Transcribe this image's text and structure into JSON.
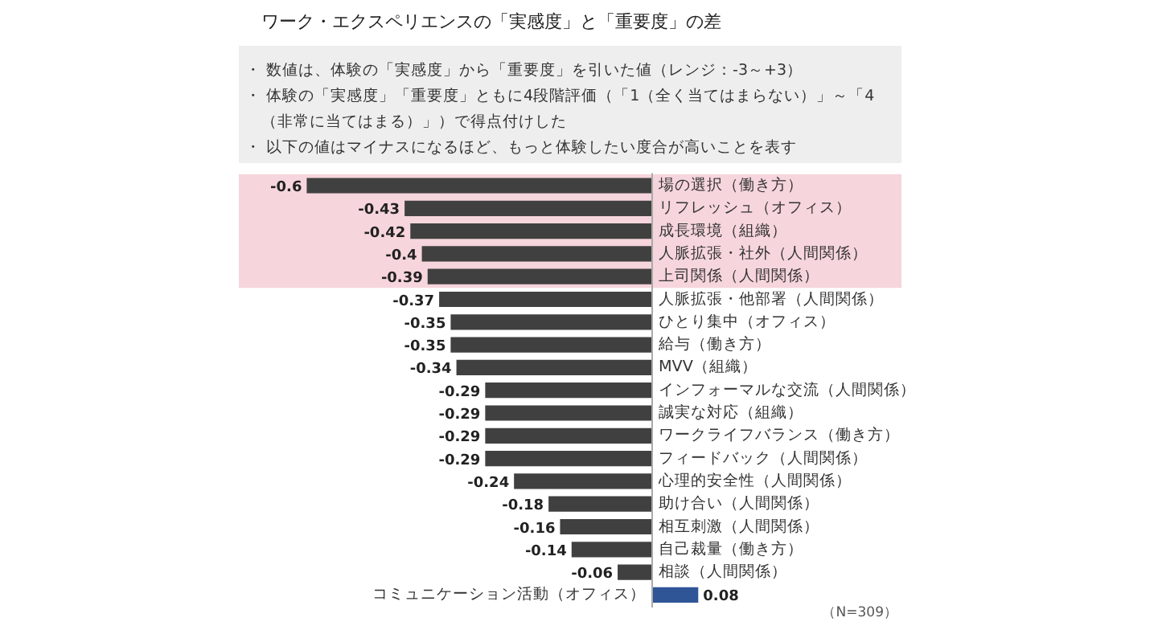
{
  "chart_data": {
    "type": "bar",
    "orientation": "horizontal",
    "data_labels": true,
    "grid": false,
    "title": "ワーク・エクスペリエンスの「実感度」と「重要度」の差",
    "annotations": [
      "・ 数値は、体験の「実感度」から「重要度」を引いた値（レンジ：-3～+3）",
      "・ 体験の「実感度」「重要度」ともに4段階評価（「1（全く当てはまらない）」～「4\n　（非常に当てはまる）」）で得点付けした",
      "・ 以下の値はマイナスになるほど、もっと体験したい度合が高いことを表す",
      "（N=309）"
    ],
    "categories": [
      "場の選択（働き方）",
      "リフレッシュ（オフィス）",
      "成長環境（組織）",
      "人脈拡張・社外（人間関係）",
      "上司関係（人間関係）",
      "人脈拡張・他部署（人間関係）",
      "ひとり集中（オフィス）",
      "給与（働き方）",
      "MVV（組織）",
      "インフォーマルな交流（人間関係）",
      "誠実な対応（組織）",
      "ワークライフバランス（働き方）",
      "フィードバック（人間関係）",
      "心理的安全性（人間関係）",
      "助け合い（人間関係）",
      "相互刺激（人間関係）",
      "自己裁量（働き方）",
      "相談（人間関係）",
      "コミュニケーション活動（オフィス）"
    ],
    "values": [
      -0.6,
      -0.43,
      -0.42,
      -0.4,
      -0.39,
      -0.37,
      -0.35,
      -0.35,
      -0.34,
      -0.29,
      -0.29,
      -0.29,
      -0.29,
      -0.24,
      -0.18,
      -0.16,
      -0.14,
      -0.06,
      0.08
    ],
    "colors": [
      "#404040",
      "#404040",
      "#404040",
      "#404040",
      "#404040",
      "#404040",
      "#404040",
      "#404040",
      "#404040",
      "#404040",
      "#404040",
      "#404040",
      "#404040",
      "#404040",
      "#404040",
      "#404040",
      "#404040",
      "#404040",
      "#2f5597"
    ],
    "bands": [
      {
        "axis": "y",
        "from": "場の選択（働き方）",
        "to": "上司関係（人間関係）",
        "color": "#f6d5dc"
      }
    ]
  }
}
